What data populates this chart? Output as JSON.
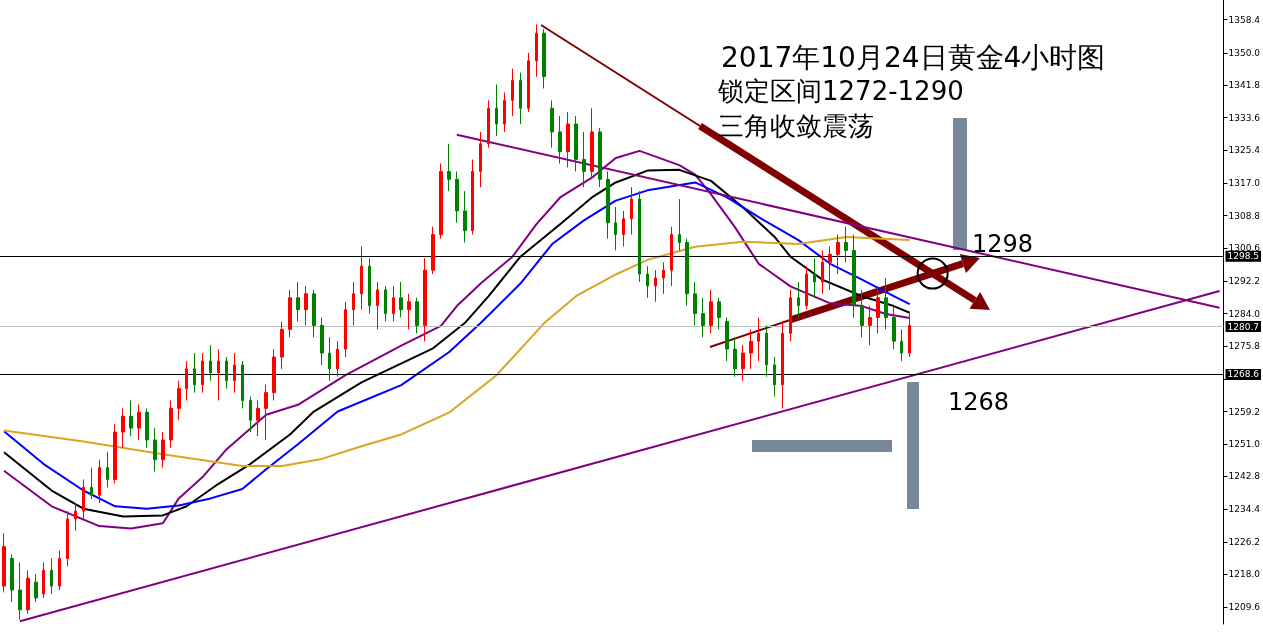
{
  "chart_data": {
    "type": "candlestick",
    "title": "2017年10月24日黄金4小时图",
    "annotations": [
      "锁定区间1272-1290",
      "三角收敛震荡",
      "1298",
      "1268"
    ],
    "categories": [
      null,
      null,
      null,
      null,
      null,
      null,
      null,
      null,
      null,
      null,
      null,
      null,
      null,
      null,
      null,
      null,
      null,
      null,
      null,
      null,
      null,
      null,
      null,
      null,
      null,
      null,
      null,
      null,
      null,
      null,
      null,
      null,
      null,
      null,
      null,
      null,
      null,
      null,
      null,
      null,
      null,
      null,
      null,
      null,
      null,
      null,
      null,
      null,
      null,
      null,
      null,
      null,
      null,
      null,
      null,
      null,
      null,
      null,
      null,
      null,
      null,
      null,
      null,
      null,
      null,
      null,
      null,
      null,
      null,
      null,
      null,
      null,
      null,
      null,
      null,
      null,
      null,
      null,
      null,
      null,
      null,
      null,
      null,
      null,
      null,
      null,
      null,
      null,
      null,
      null,
      null,
      null,
      null,
      null,
      null,
      null,
      null,
      null,
      null,
      null,
      null,
      null,
      null,
      null,
      null,
      null,
      null,
      null,
      null,
      null,
      null,
      null,
      null,
      null,
      null,
      null,
      null,
      null,
      null,
      null,
      null,
      null,
      null,
      null,
      null,
      null,
      null,
      null,
      null,
      null,
      null,
      null,
      null,
      null,
      null,
      null,
      null,
      null,
      null,
      null,
      null,
      null,
      null,
      null,
      null,
      null,
      null,
      null,
      null,
      null,
      null,
      null,
      null,
      null
    ],
    "ylim": [
      1205.4,
      1363.4
    ],
    "yticks": [
      {
        "value": 1209.6,
        "label": "1209.6"
      },
      {
        "value": 1218,
        "label": "1218.0"
      },
      {
        "value": 1226.2,
        "label": "1226.2"
      },
      {
        "value": 1234.4,
        "label": "1234.4"
      },
      {
        "value": 1242.8,
        "label": "1242.8"
      },
      {
        "value": 1251,
        "label": "1251.0"
      },
      {
        "value": 1259.2,
        "label": "1259.2"
      },
      {
        "value": 1267.4,
        "label": null
      },
      {
        "value": 1275.8,
        "label": "1275.8"
      },
      {
        "value": 1284,
        "label": "1284.0"
      },
      {
        "value": 1292.2,
        "label": "1292.2"
      },
      {
        "value": 1300.6,
        "label": "1300.6"
      },
      {
        "value": 1308.8,
        "label": "1308.8"
      },
      {
        "value": 1317,
        "label": "1317.0"
      },
      {
        "value": 1325.4,
        "label": "1325.4"
      },
      {
        "value": 1333.6,
        "label": "1333.6"
      },
      {
        "value": 1341.8,
        "label": "1341.8"
      },
      {
        "value": 1350,
        "label": "1350.0"
      },
      {
        "value": 1358.4,
        "label": "1358.4"
      }
    ],
    "ref_lines": [
      {
        "axis": "y",
        "value": 1298.5,
        "label": "1298.5",
        "color": "#000000"
      },
      {
        "axis": "y",
        "value": 1280.7,
        "label": "1280.7",
        "color": "#c0c0c0"
      },
      {
        "axis": "y",
        "value": 1268.6,
        "label": "1268.6",
        "color": "#000000"
      }
    ],
    "series": [
      {
        "type": "candlestick",
        "ohlc": [
          [
            1215,
            1228.4,
            1213.4,
            1225
          ],
          [
            1222,
            1223,
            1211,
            1214
          ],
          [
            1214,
            1221,
            1206.5,
            1209
          ],
          [
            1209,
            1219,
            1208,
            1217
          ],
          [
            1216,
            1218,
            1211,
            1212
          ],
          [
            1213,
            1221,
            1212,
            1219
          ],
          [
            1219,
            1222,
            1213,
            1215
          ],
          [
            1215,
            1224,
            1214,
            1222
          ],
          [
            1222,
            1234,
            1220,
            1232
          ],
          [
            1232,
            1236,
            1229,
            1234
          ],
          [
            1234,
            1242,
            1232,
            1240
          ],
          [
            1240,
            1245,
            1237,
            1238
          ],
          [
            1238,
            1247,
            1236,
            1245
          ],
          [
            1245,
            1249,
            1240,
            1242
          ],
          [
            1242,
            1256,
            1241,
            1254
          ],
          [
            1254,
            1260,
            1250,
            1258
          ],
          [
            1258,
            1262,
            1253,
            1255
          ],
          [
            1255,
            1261,
            1252,
            1259
          ],
          [
            1259,
            1260,
            1250,
            1252
          ],
          [
            1252,
            1255,
            1244,
            1247
          ],
          [
            1247,
            1254,
            1245,
            1252
          ],
          [
            1252,
            1262,
            1250,
            1260
          ],
          [
            1260,
            1267,
            1257,
            1265
          ],
          [
            1265,
            1272,
            1262,
            1270
          ],
          [
            1270,
            1274,
            1264,
            1266
          ],
          [
            1266,
            1274,
            1264,
            1272
          ],
          [
            1272,
            1276,
            1267,
            1269
          ],
          [
            1269,
            1275,
            1262,
            1272
          ],
          [
            1272,
            1273,
            1265,
            1267
          ],
          [
            1267,
            1274,
            1264,
            1271
          ],
          [
            1271,
            1272,
            1260,
            1262
          ],
          [
            1262,
            1263,
            1254,
            1257
          ],
          [
            1257,
            1262,
            1253,
            1260
          ],
          [
            1260,
            1266,
            1252,
            1264
          ],
          [
            1264,
            1275,
            1262,
            1273
          ],
          [
            1273,
            1282,
            1270,
            1280
          ],
          [
            1280,
            1290,
            1278,
            1288
          ],
          [
            1288,
            1292,
            1282,
            1285
          ],
          [
            1285,
            1291,
            1281,
            1289
          ],
          [
            1289,
            1290,
            1278,
            1281
          ],
          [
            1281,
            1283,
            1271,
            1274
          ],
          [
            1274,
            1278,
            1267,
            1270
          ],
          [
            1270,
            1277,
            1268,
            1275
          ],
          [
            1275,
            1287,
            1273,
            1285
          ],
          [
            1285,
            1292,
            1281,
            1289
          ],
          [
            1289,
            1301,
            1285,
            1296
          ],
          [
            1296,
            1298,
            1284,
            1286
          ],
          [
            1286,
            1292,
            1280,
            1290
          ],
          [
            1290,
            1291,
            1282,
            1284
          ],
          [
            1284,
            1291,
            1282,
            1288
          ],
          [
            1288,
            1292,
            1283,
            1285
          ],
          [
            1285,
            1289,
            1280,
            1287
          ],
          [
            1287,
            1288,
            1279,
            1281
          ],
          [
            1281,
            1298,
            1277,
            1295
          ],
          [
            1295,
            1306,
            1294,
            1304
          ],
          [
            1304,
            1322,
            1303,
            1320
          ],
          [
            1320,
            1327,
            1315,
            1318
          ],
          [
            1318,
            1320,
            1307,
            1310
          ],
          [
            1310,
            1315,
            1302,
            1305
          ],
          [
            1305,
            1323,
            1304,
            1320
          ],
          [
            1320,
            1330,
            1316,
            1327
          ],
          [
            1327,
            1338,
            1326,
            1336
          ],
          [
            1336,
            1342,
            1329,
            1332
          ],
          [
            1332,
            1340,
            1330,
            1338
          ],
          [
            1338,
            1346,
            1334,
            1343
          ],
          [
            1343,
            1345,
            1332,
            1336
          ],
          [
            1336,
            1350,
            1335,
            1348
          ],
          [
            1348,
            1357.2,
            1344,
            1355
          ],
          [
            1355,
            1356,
            1341,
            1344
          ],
          [
            1336,
            1338,
            1326,
            1330
          ],
          [
            1330,
            1334,
            1322,
            1325
          ],
          [
            1325,
            1335,
            1321,
            1332
          ],
          [
            1332,
            1334,
            1320,
            1323
          ],
          [
            1323,
            1330,
            1316,
            1320
          ],
          [
            1320,
            1336,
            1318,
            1330
          ],
          [
            1330,
            1331,
            1316,
            1318
          ],
          [
            1318,
            1320,
            1303,
            1307
          ],
          [
            1307,
            1311,
            1300,
            1304
          ],
          [
            1304,
            1310,
            1301,
            1308
          ],
          [
            1308,
            1316,
            1304,
            1313
          ],
          [
            1313,
            1315,
            1292,
            1294
          ],
          [
            1294,
            1296,
            1288,
            1291
          ],
          [
            1291,
            1295,
            1287,
            1293
          ],
          [
            1293,
            1297,
            1289,
            1295
          ],
          [
            1295,
            1306,
            1291,
            1304
          ],
          [
            1304,
            1313,
            1300,
            1302
          ],
          [
            1302,
            1303,
            1286,
            1289
          ],
          [
            1289,
            1292,
            1281,
            1284
          ],
          [
            1284,
            1288,
            1278,
            1281
          ],
          [
            1281,
            1290,
            1279,
            1287
          ],
          [
            1287,
            1288,
            1280,
            1283
          ],
          [
            1282,
            1283,
            1272,
            1275
          ],
          [
            1275,
            1278,
            1268,
            1270
          ],
          [
            1270,
            1276,
            1267,
            1274
          ],
          [
            1274,
            1280,
            1270,
            1277
          ],
          [
            1277,
            1283,
            1272,
            1279
          ],
          [
            1279,
            1281,
            1268,
            1271
          ],
          [
            1271,
            1273,
            1263,
            1266
          ],
          [
            1266,
            1282,
            1260,
            1279
          ],
          [
            1279,
            1290,
            1277,
            1288
          ],
          [
            1288,
            1292,
            1283,
            1286
          ],
          [
            1286,
            1296,
            1285,
            1294
          ],
          [
            1294,
            1298,
            1288,
            1292
          ],
          [
            1292,
            1300,
            1289,
            1297
          ],
          [
            1297,
            1301,
            1290,
            1299
          ],
          [
            1299,
            1304,
            1294,
            1302
          ],
          [
            1302,
            1306,
            1297,
            1300
          ],
          [
            1300,
            1304,
            1283,
            1286
          ],
          [
            1286,
            1290,
            1278,
            1281
          ],
          [
            1281,
            1286,
            1276,
            1283
          ],
          [
            1283,
            1291,
            1279,
            1288
          ],
          [
            1288,
            1293,
            1280,
            1283
          ],
          [
            1283,
            1286,
            1275,
            1277
          ],
          [
            1277,
            1280,
            1272,
            1274
          ],
          [
            1274,
            1284,
            1273,
            1281
          ],
          null,
          null,
          null,
          null,
          null,
          null,
          null,
          null,
          null,
          null,
          null,
          null,
          null,
          null,
          null,
          null,
          null,
          null,
          null,
          null,
          null,
          null,
          null,
          null,
          null,
          null,
          null,
          null,
          null,
          null,
          null,
          null,
          null,
          null,
          null,
          null,
          null,
          null,
          null
        ],
        "colors": [
          "#ff0000",
          "#008000",
          "#008000",
          "#ff0000",
          "#008000",
          "#ff0000",
          "#008000",
          "#ff0000",
          "#ff0000",
          "#ff0000",
          "#ff0000",
          "#008000",
          "#ff0000",
          "#008000",
          "#ff0000",
          "#ff0000",
          "#008000",
          "#ff0000",
          "#008000",
          "#008000",
          "#ff0000",
          "#ff0000",
          "#ff0000",
          "#ff0000",
          "#008000",
          "#ff0000",
          "#008000",
          "#ff0000",
          "#008000",
          "#ff0000",
          "#008000",
          "#008000",
          "#ff0000",
          "#ff0000",
          "#ff0000",
          "#ff0000",
          "#ff0000",
          "#008000",
          "#ff0000",
          "#008000",
          "#008000",
          "#008000",
          "#ff0000",
          "#ff0000",
          "#ff0000",
          "#ff0000",
          "#008000",
          "#ff0000",
          "#008000",
          "#ff0000",
          "#008000",
          "#ff0000",
          "#008000",
          "#ff0000",
          "#ff0000",
          "#ff0000",
          "#008000",
          "#008000",
          "#008000",
          "#ff0000",
          "#ff0000",
          "#ff0000",
          "#008000",
          "#ff0000",
          "#ff0000",
          "#008000",
          "#ff0000",
          "#ff0000",
          "#008000",
          "#008000",
          "#008000",
          "#ff0000",
          "#008000",
          "#008000",
          "#ff0000",
          "#008000",
          "#008000",
          "#008000",
          "#ff0000",
          "#ff0000",
          "#008000",
          "#008000",
          "#ff0000",
          "#ff0000",
          "#ff0000",
          "#008000",
          "#008000",
          "#008000",
          "#008000",
          "#ff0000",
          "#008000",
          "#008000",
          "#008000",
          "#ff0000",
          "#ff0000",
          "#ff0000",
          "#008000",
          "#008000",
          "#ff0000",
          "#ff0000",
          "#008000",
          "#ff0000",
          "#008000",
          "#ff0000",
          "#ff0000",
          "#ff0000",
          "#008000",
          "#008000",
          "#008000",
          "#ff0000",
          "#ff0000",
          "#008000",
          "#008000",
          "#008000",
          "#ff0000",
          null,
          null,
          null,
          null,
          null,
          null,
          null,
          null,
          null,
          null,
          null,
          null,
          null,
          null,
          null,
          null,
          null,
          null,
          null,
          null,
          null,
          null,
          null,
          null,
          null,
          null,
          null,
          null,
          null,
          null,
          null,
          null,
          null,
          null,
          null,
          null,
          null,
          null,
          null
        ]
      },
      {
        "type": "line",
        "color": "#800080",
        "values": [
          1244.2,
          null,
          null,
          null,
          null,
          null,
          1235.2,
          null,
          null,
          null,
          null,
          null,
          1230.2,
          null,
          null,
          null,
          1229.6,
          null,
          null,
          null,
          1230.9,
          null,
          1237.2,
          null,
          null,
          1242.6,
          null,
          null,
          1249.6,
          null,
          null,
          null,
          null,
          1258.4,
          null,
          null,
          null,
          1260.9,
          null,
          null,
          null,
          null,
          null,
          1268.4,
          null,
          null,
          null,
          null,
          null,
          null,
          1275.9,
          null,
          null,
          null,
          null,
          1280.9,
          null,
          1285.9,
          null,
          null,
          1291.6,
          null,
          null,
          null,
          1298.4,
          null,
          null,
          1306.6,
          null,
          null,
          1313.4,
          null,
          null,
          null,
          1318.4,
          null,
          null,
          1323.4,
          null,
          null,
          1325.2,
          null,
          null,
          null,
          null,
          1321.6,
          null,
          1319.2,
          null,
          1314.2,
          null,
          null,
          1305.9,
          null,
          null,
          1296.6,
          null,
          null,
          null,
          1290.9,
          null,
          null,
          null,
          null,
          1286.6,
          null,
          null,
          null,
          1285.9,
          null,
          null,
          1283.9,
          null,
          null,
          1282.9,
          null,
          null,
          null,
          null,
          null,
          null,
          null,
          null,
          null,
          null,
          null,
          null,
          null,
          null,
          null,
          null,
          null,
          null,
          null,
          null,
          null,
          null,
          null,
          null,
          null,
          null,
          null,
          null,
          null,
          null,
          null,
          null,
          null,
          null,
          null,
          null,
          null,
          null,
          null
        ]
      },
      {
        "type": "line",
        "color": "#000000",
        "values": [
          1248.9,
          null,
          null,
          null,
          null,
          null,
          1239.2,
          null,
          null,
          null,
          1234.6,
          null,
          null,
          null,
          null,
          1232.6,
          null,
          null,
          null,
          null,
          1232.9,
          null,
          null,
          1235.2,
          null,
          null,
          null,
          1240.9,
          null,
          null,
          null,
          1245.9,
          null,
          null,
          null,
          null,
          1253.4,
          null,
          null,
          1259.2,
          null,
          null,
          null,
          null,
          null,
          1266.6,
          null,
          null,
          null,
          null,
          null,
          null,
          null,
          null,
          1275.2,
          null,
          null,
          null,
          1281.6,
          null,
          null,
          1288.4,
          null,
          null,
          null,
          1298.4,
          null,
          null,
          null,
          null,
          1306.6,
          null,
          null,
          null,
          1313.4,
          null,
          null,
          1317.2,
          null,
          null,
          null,
          1320.2,
          null,
          null,
          null,
          1320.4,
          null,
          null,
          null,
          1317.6,
          null,
          null,
          null,
          1310.9,
          null,
          null,
          null,
          1303.4,
          null,
          1298.4,
          null,
          null,
          null,
          1292.6,
          null,
          null,
          null,
          null,
          1288.4,
          null,
          null,
          null,
          1285.9,
          null,
          1284.2,
          null,
          null,
          null,
          null,
          null,
          null,
          null,
          null,
          null,
          null,
          null,
          null,
          null,
          null,
          null,
          null,
          null,
          null,
          null,
          null,
          null,
          null,
          null,
          null,
          null,
          null,
          null,
          null,
          null,
          null,
          null,
          null,
          null,
          null,
          null,
          null,
          null,
          null,
          null
        ]
      },
      {
        "type": "line",
        "color": "#0000ff",
        "values": [
          1254.2,
          null,
          null,
          null,
          null,
          1245.9,
          null,
          null,
          null,
          null,
          1239.2,
          null,
          null,
          null,
          1235.2,
          null,
          null,
          null,
          1234.6,
          null,
          null,
          null,
          1235.4,
          null,
          null,
          null,
          1237.2,
          null,
          null,
          null,
          1239.6,
          null,
          null,
          1244.6,
          null,
          null,
          null,
          1250.9,
          null,
          null,
          null,
          null,
          1259.2,
          null,
          null,
          null,
          null,
          null,
          null,
          null,
          1265.9,
          null,
          null,
          null,
          null,
          null,
          1274.2,
          null,
          null,
          null,
          1281.6,
          null,
          null,
          null,
          null,
          1291.6,
          null,
          null,
          null,
          1301.6,
          null,
          null,
          null,
          1307.6,
          null,
          null,
          null,
          1312.6,
          null,
          null,
          null,
          1315.2,
          null,
          null,
          null,
          null,
          null,
          1317.2,
          null,
          null,
          null,
          1313.4,
          null,
          null,
          null,
          1308.4,
          null,
          null,
          null,
          null,
          1302.6,
          null,
          null,
          null,
          1296.6,
          null,
          null,
          null,
          1292.6,
          null,
          null,
          null,
          1288.4,
          null,
          1286.4,
          null,
          null,
          null,
          null,
          null,
          null,
          null,
          null,
          null,
          null,
          null,
          null,
          null,
          null,
          null,
          null,
          null,
          null,
          null,
          null,
          null,
          null,
          null,
          null,
          null,
          null,
          null,
          null,
          null,
          null,
          null,
          null,
          null,
          null,
          null,
          null,
          null,
          null,
          null
        ]
      },
      {
        "type": "line",
        "color": "#daa520",
        "values": [
          1254.4,
          null,
          null,
          null,
          null,
          null,
          null,
          null,
          null,
          null,
          1251.6,
          null,
          null,
          null,
          null,
          null,
          null,
          null,
          null,
          null,
          1248.4,
          null,
          null,
          null,
          null,
          null,
          null,
          null,
          null,
          null,
          1245.4,
          null,
          null,
          null,
          null,
          1245.4,
          null,
          null,
          null,
          null,
          1247.2,
          null,
          null,
          null,
          null,
          1250.4,
          null,
          null,
          null,
          null,
          1253.4,
          null,
          null,
          null,
          null,
          null,
          1258.9,
          null,
          null,
          null,
          null,
          null,
          1268.4,
          null,
          null,
          null,
          null,
          null,
          1281.6,
          null,
          null,
          null,
          1288.4,
          null,
          null,
          null,
          null,
          1293.9,
          null,
          null,
          null,
          1297.6,
          null,
          null,
          null,
          null,
          null,
          1300.9,
          null,
          null,
          null,
          null,
          null,
          1302.2,
          null,
          null,
          null,
          null,
          null,
          null,
          1301.6,
          null,
          null,
          null,
          null,
          null,
          1303.4,
          null,
          null,
          null,
          null,
          null,
          null,
          null,
          1302.6,
          null,
          null,
          null,
          null,
          null,
          null,
          null,
          null,
          null,
          null,
          null,
          null,
          null,
          null,
          null,
          null,
          null,
          null,
          null,
          null,
          null,
          null,
          null,
          null,
          null,
          null,
          null,
          null,
          null,
          null,
          null,
          null,
          null,
          null,
          null,
          null,
          null,
          null,
          null
        ]
      },
      {
        "type": "line",
        "color": "#800080",
        "values": [
          null,
          null,
          1206.1,
          null,
          null,
          null,
          null,
          null,
          null,
          null,
          null,
          null,
          null,
          null,
          null,
          null,
          null,
          null,
          null,
          null,
          null,
          null,
          null,
          null,
          null,
          null,
          null,
          null,
          null,
          null,
          null,
          null,
          null,
          null,
          null,
          null,
          null,
          null,
          null,
          null,
          null,
          null,
          null,
          null,
          null,
          null,
          null,
          null,
          null,
          null,
          null,
          null,
          null,
          null,
          null,
          null,
          null,
          null,
          null,
          null,
          null,
          null,
          null,
          null,
          null,
          null,
          null,
          null,
          null,
          null,
          null,
          null,
          null,
          null,
          null,
          null,
          null,
          null,
          null,
          null,
          null,
          null,
          null,
          null,
          null,
          null,
          null,
          null,
          null,
          null,
          null,
          null,
          null,
          null,
          null,
          null,
          null,
          null,
          null,
          null,
          null,
          null,
          null,
          null,
          null,
          null,
          null,
          null,
          null,
          null,
          null,
          null,
          null,
          null,
          null,
          null,
          null,
          null,
          null,
          null,
          null,
          null,
          null,
          null,
          null,
          null,
          null,
          null,
          null,
          null,
          null,
          null,
          null,
          null,
          null,
          null,
          null,
          null,
          null,
          null,
          null,
          null,
          null,
          null,
          null,
          null,
          null,
          null,
          null,
          null,
          null,
          null,
          null,
          1289.7
        ]
      },
      {
        "type": "line",
        "color": "#800080",
        "values": [
          null,
          null,
          null,
          null,
          null,
          null,
          null,
          null,
          null,
          null,
          null,
          null,
          null,
          null,
          null,
          null,
          null,
          null,
          null,
          null,
          null,
          null,
          null,
          null,
          null,
          null,
          null,
          null,
          null,
          null,
          null,
          null,
          null,
          null,
          null,
          null,
          null,
          null,
          null,
          null,
          null,
          null,
          null,
          null,
          null,
          null,
          null,
          null,
          null,
          null,
          null,
          null,
          null,
          null,
          null,
          null,
          null,
          1329.3,
          null,
          null,
          null,
          null,
          null,
          null,
          null,
          null,
          null,
          null,
          null,
          null,
          null,
          null,
          null,
          null,
          null,
          null,
          null,
          null,
          null,
          null,
          null,
          null,
          null,
          null,
          null,
          null,
          null,
          null,
          null,
          null,
          null,
          null,
          null,
          null,
          null,
          null,
          null,
          null,
          null,
          null,
          null,
          null,
          null,
          null,
          null,
          null,
          null,
          null,
          null,
          null,
          null,
          null,
          null,
          null,
          null,
          null,
          null,
          null,
          null,
          null,
          null,
          null,
          null,
          null,
          null,
          null,
          null,
          null,
          null,
          null,
          null,
          null,
          null,
          null,
          null,
          null,
          null,
          null,
          null,
          null,
          null,
          null,
          null,
          null,
          null,
          null,
          null,
          null,
          null,
          null,
          null,
          null,
          null,
          1285.5
        ]
      }
    ]
  }
}
